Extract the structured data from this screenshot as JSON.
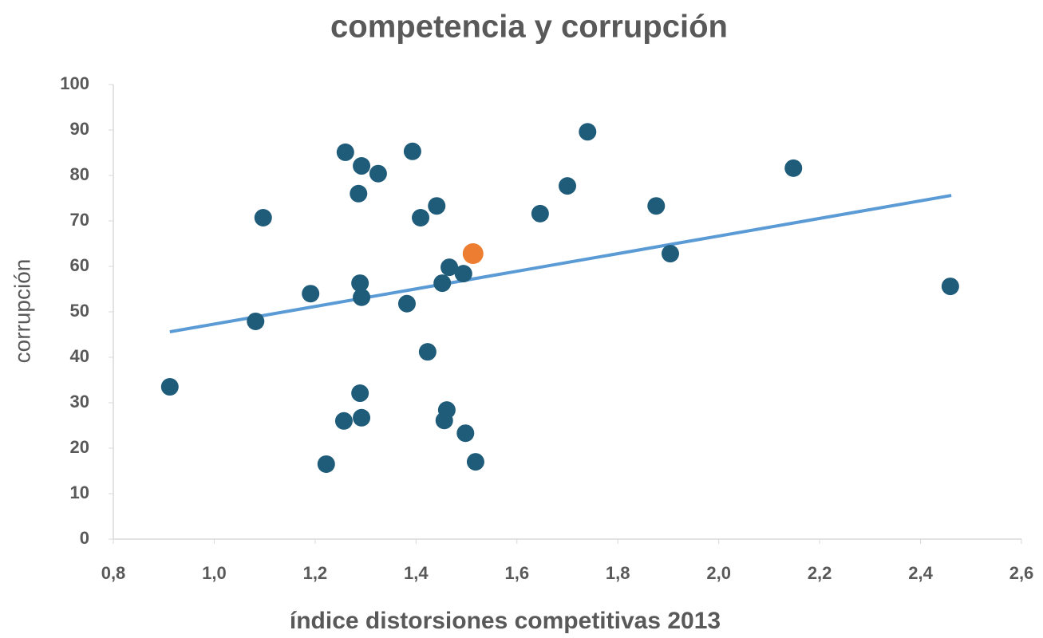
{
  "chart_data": {
    "type": "scatter",
    "title": "competencia y corrupción",
    "xlabel": "índice distorsiones competitivas 2013",
    "ylabel": "corrupción",
    "xlim": [
      0.8,
      2.6
    ],
    "xticks": [
      {
        "value": 0.8,
        "label": "0,8"
      },
      {
        "value": 1.0,
        "label": "1,0"
      },
      {
        "value": 1.2,
        "label": "1,2"
      },
      {
        "value": 1.4,
        "label": "1,4"
      },
      {
        "value": 1.6,
        "label": "1,6"
      },
      {
        "value": 1.8,
        "label": "1,8"
      },
      {
        "value": 2.0,
        "label": "2,0"
      },
      {
        "value": 2.2,
        "label": "2,2"
      },
      {
        "value": 2.4,
        "label": "2,4"
      },
      {
        "value": 2.6,
        "label": "2,6"
      }
    ],
    "ylim": [
      0,
      100
    ],
    "yticks": [
      0,
      10,
      20,
      30,
      40,
      50,
      60,
      70,
      80,
      90,
      100
    ],
    "series": [
      {
        "color": "#1f5c7a",
        "x": [
          0.912,
          1.082,
          1.097,
          1.191,
          1.222,
          1.257,
          1.26,
          1.286,
          1.289,
          1.289,
          1.292,
          1.292,
          1.292,
          1.325,
          1.382,
          1.393,
          1.409,
          1.423,
          1.441,
          1.452,
          1.456,
          1.461,
          1.466,
          1.494,
          1.498,
          1.518,
          1.646,
          1.7,
          1.74,
          1.876,
          1.904,
          2.148,
          2.459
        ],
        "values": [
          33.5,
          47.9,
          70.7,
          54.0,
          16.5,
          26.0,
          85.1,
          76.0,
          32.1,
          56.3,
          26.7,
          53.2,
          82.1,
          80.4,
          51.8,
          85.3,
          70.7,
          41.2,
          73.3,
          56.3,
          26.1,
          28.4,
          59.8,
          58.4,
          23.3,
          17.0,
          71.6,
          77.7,
          89.6,
          73.3,
          62.8,
          81.6,
          55.6
        ]
      },
      {
        "color": "#ed7d31",
        "x": [
          1.513
        ],
        "values": [
          62.8
        ]
      }
    ],
    "trendline": {
      "color": "#5b9bd5",
      "x": [
        0.912,
        2.461
      ],
      "values": [
        45.6,
        75.6
      ]
    }
  }
}
